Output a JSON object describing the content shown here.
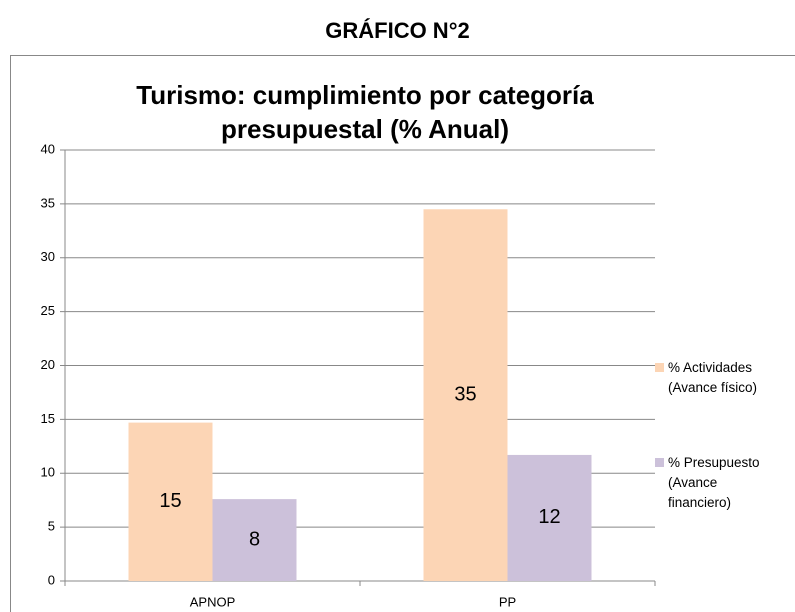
{
  "header": {
    "title": "GRÁFICO N°2"
  },
  "chart_data": {
    "type": "bar",
    "title": "Turismo: cumplimiento  por categoría presupuestal (% Anual)",
    "categories": [
      "APNOP",
      "PP"
    ],
    "series": [
      {
        "name": "% Actividades (Avance físico)",
        "color": "#fcd5b5",
        "values": [
          14.7,
          34.5
        ],
        "value_labels": [
          "15",
          "35"
        ]
      },
      {
        "name": "% Presupuesto (Avance financiero)",
        "color": "#ccc1da",
        "values": [
          7.6,
          11.7
        ],
        "value_labels": [
          "8",
          "12"
        ]
      }
    ],
    "ylim": [
      0,
      40
    ],
    "yticks": [
      0,
      5,
      10,
      15,
      20,
      25,
      30,
      35,
      40
    ],
    "grid": true,
    "legend": "right"
  }
}
